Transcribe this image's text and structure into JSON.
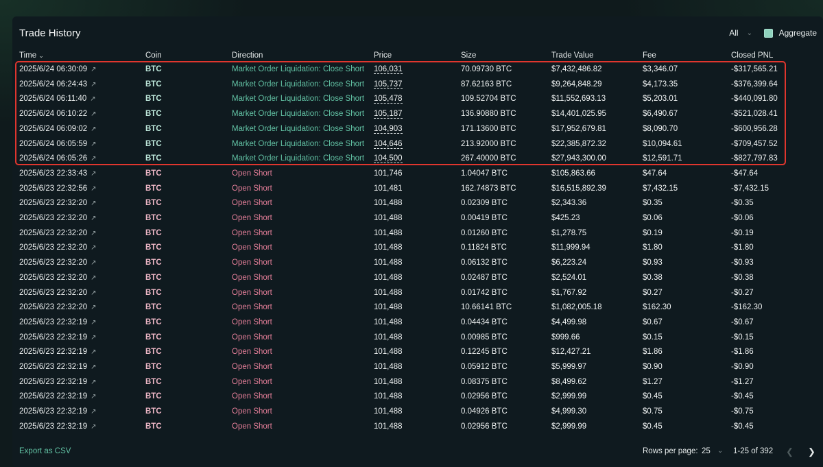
{
  "title": "Trade History",
  "filter": {
    "selected": "All",
    "chevron_icon": "chevron-down-icon"
  },
  "aggregate": {
    "label": "Aggregate",
    "checked": true
  },
  "columns": [
    "Time",
    "Coin",
    "Direction",
    "Price",
    "Size",
    "Trade Value",
    "Fee",
    "Closed PNL"
  ],
  "sort_icon": "chevron-down-icon",
  "colors": {
    "green": "#62c2a4",
    "red": "#e57f99",
    "highlight": "#e0362e"
  },
  "rows": [
    {
      "time": "2025/6/24 06:30:09",
      "coin": "BTC",
      "direction": "Market Order Liquidation: Close Short",
      "side": "long",
      "price": "106,031",
      "size": "70.09730 BTC",
      "value": "$7,432,486.82",
      "fee": "$3,346.07",
      "pnl": "-$317,565.21"
    },
    {
      "time": "2025/6/24 06:24:43",
      "coin": "BTC",
      "direction": "Market Order Liquidation: Close Short",
      "side": "long",
      "price": "105,737",
      "size": "87.62163 BTC",
      "value": "$9,264,848.29",
      "fee": "$4,173.35",
      "pnl": "-$376,399.64"
    },
    {
      "time": "2025/6/24 06:11:40",
      "coin": "BTC",
      "direction": "Market Order Liquidation: Close Short",
      "side": "long",
      "price": "105,478",
      "size": "109.52704 BTC",
      "value": "$11,552,693.13",
      "fee": "$5,203.01",
      "pnl": "-$440,091.80"
    },
    {
      "time": "2025/6/24 06:10:22",
      "coin": "BTC",
      "direction": "Market Order Liquidation: Close Short",
      "side": "long",
      "price": "105,187",
      "size": "136.90880 BTC",
      "value": "$14,401,025.95",
      "fee": "$6,490.67",
      "pnl": "-$521,028.41"
    },
    {
      "time": "2025/6/24 06:09:02",
      "coin": "BTC",
      "direction": "Market Order Liquidation: Close Short",
      "side": "long",
      "price": "104,903",
      "size": "171.13600 BTC",
      "value": "$17,952,679.81",
      "fee": "$8,090.70",
      "pnl": "-$600,956.28"
    },
    {
      "time": "2025/6/24 06:05:59",
      "coin": "BTC",
      "direction": "Market Order Liquidation: Close Short",
      "side": "long",
      "price": "104,646",
      "size": "213.92000 BTC",
      "value": "$22,385,872.32",
      "fee": "$10,094.61",
      "pnl": "-$709,457.52"
    },
    {
      "time": "2025/6/24 06:05:26",
      "coin": "BTC",
      "direction": "Market Order Liquidation: Close Short",
      "side": "long",
      "price": "104,500",
      "size": "267.40000 BTC",
      "value": "$27,943,300.00",
      "fee": "$12,591.71",
      "pnl": "-$827,797.83"
    },
    {
      "time": "2025/6/23 22:33:43",
      "coin": "BTC",
      "direction": "Open Short",
      "side": "short",
      "price": "101,746",
      "size": "1.04047 BTC",
      "value": "$105,863.66",
      "fee": "$47.64",
      "pnl": "-$47.64"
    },
    {
      "time": "2025/6/23 22:32:56",
      "coin": "BTC",
      "direction": "Open Short",
      "side": "short",
      "price": "101,481",
      "size": "162.74873 BTC",
      "value": "$16,515,892.39",
      "fee": "$7,432.15",
      "pnl": "-$7,432.15"
    },
    {
      "time": "2025/6/23 22:32:20",
      "coin": "BTC",
      "direction": "Open Short",
      "side": "short",
      "price": "101,488",
      "size": "0.02309 BTC",
      "value": "$2,343.36",
      "fee": "$0.35",
      "pnl": "-$0.35"
    },
    {
      "time": "2025/6/23 22:32:20",
      "coin": "BTC",
      "direction": "Open Short",
      "side": "short",
      "price": "101,488",
      "size": "0.00419 BTC",
      "value": "$425.23",
      "fee": "$0.06",
      "pnl": "-$0.06"
    },
    {
      "time": "2025/6/23 22:32:20",
      "coin": "BTC",
      "direction": "Open Short",
      "side": "short",
      "price": "101,488",
      "size": "0.01260 BTC",
      "value": "$1,278.75",
      "fee": "$0.19",
      "pnl": "-$0.19"
    },
    {
      "time": "2025/6/23 22:32:20",
      "coin": "BTC",
      "direction": "Open Short",
      "side": "short",
      "price": "101,488",
      "size": "0.11824 BTC",
      "value": "$11,999.94",
      "fee": "$1.80",
      "pnl": "-$1.80"
    },
    {
      "time": "2025/6/23 22:32:20",
      "coin": "BTC",
      "direction": "Open Short",
      "side": "short",
      "price": "101,488",
      "size": "0.06132 BTC",
      "value": "$6,223.24",
      "fee": "$0.93",
      "pnl": "-$0.93"
    },
    {
      "time": "2025/6/23 22:32:20",
      "coin": "BTC",
      "direction": "Open Short",
      "side": "short",
      "price": "101,488",
      "size": "0.02487 BTC",
      "value": "$2,524.01",
      "fee": "$0.38",
      "pnl": "-$0.38"
    },
    {
      "time": "2025/6/23 22:32:20",
      "coin": "BTC",
      "direction": "Open Short",
      "side": "short",
      "price": "101,488",
      "size": "0.01742 BTC",
      "value": "$1,767.92",
      "fee": "$0.27",
      "pnl": "-$0.27"
    },
    {
      "time": "2025/6/23 22:32:20",
      "coin": "BTC",
      "direction": "Open Short",
      "side": "short",
      "price": "101,488",
      "size": "10.66141 BTC",
      "value": "$1,082,005.18",
      "fee": "$162.30",
      "pnl": "-$162.30"
    },
    {
      "time": "2025/6/23 22:32:19",
      "coin": "BTC",
      "direction": "Open Short",
      "side": "short",
      "price": "101,488",
      "size": "0.04434 BTC",
      "value": "$4,499.98",
      "fee": "$0.67",
      "pnl": "-$0.67"
    },
    {
      "time": "2025/6/23 22:32:19",
      "coin": "BTC",
      "direction": "Open Short",
      "side": "short",
      "price": "101,488",
      "size": "0.00985 BTC",
      "value": "$999.66",
      "fee": "$0.15",
      "pnl": "-$0.15"
    },
    {
      "time": "2025/6/23 22:32:19",
      "coin": "BTC",
      "direction": "Open Short",
      "side": "short",
      "price": "101,488",
      "size": "0.12245 BTC",
      "value": "$12,427.21",
      "fee": "$1.86",
      "pnl": "-$1.86"
    },
    {
      "time": "2025/6/23 22:32:19",
      "coin": "BTC",
      "direction": "Open Short",
      "side": "short",
      "price": "101,488",
      "size": "0.05912 BTC",
      "value": "$5,999.97",
      "fee": "$0.90",
      "pnl": "-$0.90"
    },
    {
      "time": "2025/6/23 22:32:19",
      "coin": "BTC",
      "direction": "Open Short",
      "side": "short",
      "price": "101,488",
      "size": "0.08375 BTC",
      "value": "$8,499.62",
      "fee": "$1.27",
      "pnl": "-$1.27"
    },
    {
      "time": "2025/6/23 22:32:19",
      "coin": "BTC",
      "direction": "Open Short",
      "side": "short",
      "price": "101,488",
      "size": "0.02956 BTC",
      "value": "$2,999.99",
      "fee": "$0.45",
      "pnl": "-$0.45"
    },
    {
      "time": "2025/6/23 22:32:19",
      "coin": "BTC",
      "direction": "Open Short",
      "side": "short",
      "price": "101,488",
      "size": "0.04926 BTC",
      "value": "$4,999.30",
      "fee": "$0.75",
      "pnl": "-$0.75"
    },
    {
      "time": "2025/6/23 22:32:19",
      "coin": "BTC",
      "direction": "Open Short",
      "side": "short",
      "price": "101,488",
      "size": "0.02956 BTC",
      "value": "$2,999.99",
      "fee": "$0.45",
      "pnl": "-$0.45"
    }
  ],
  "footer": {
    "export_label": "Export as CSV",
    "rows_per_page_label": "Rows per page:",
    "rows_per_page_value": "25",
    "range": "1-25 of 392"
  }
}
